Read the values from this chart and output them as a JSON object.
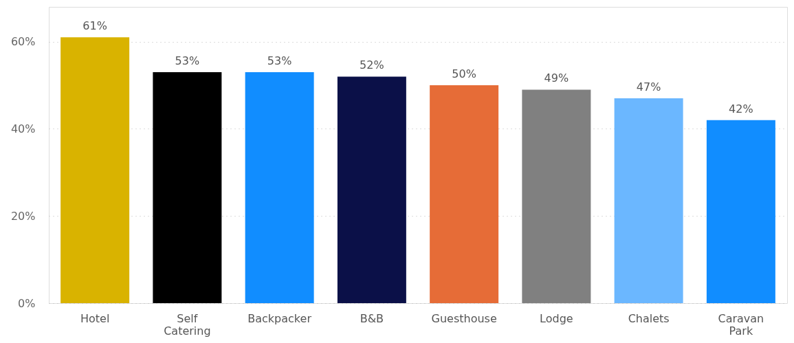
{
  "chart_data": {
    "type": "bar",
    "categories": [
      "Hotel",
      "Self Catering",
      "Backpacker",
      "B&B",
      "Guesthouse",
      "Lodge",
      "Chalets",
      "Caravan Park"
    ],
    "values": [
      61,
      53,
      53,
      52,
      50,
      49,
      47,
      42
    ],
    "colors": [
      "#d9b300",
      "#000000",
      "#118dff",
      "#0b1048",
      "#e66c37",
      "#808080",
      "#6bb7ff",
      "#118dff"
    ],
    "value_labels": [
      "61%",
      "53%",
      "53%",
      "52%",
      "50%",
      "49%",
      "47%",
      "42%"
    ],
    "ylim": [
      0,
      68
    ],
    "yticks": [
      {
        "value": 0,
        "label": "0%"
      },
      {
        "value": 20,
        "label": "20%"
      },
      {
        "value": 40,
        "label": "40%"
      },
      {
        "value": 60,
        "label": "60%"
      }
    ],
    "grid": "y",
    "legend": false
  }
}
